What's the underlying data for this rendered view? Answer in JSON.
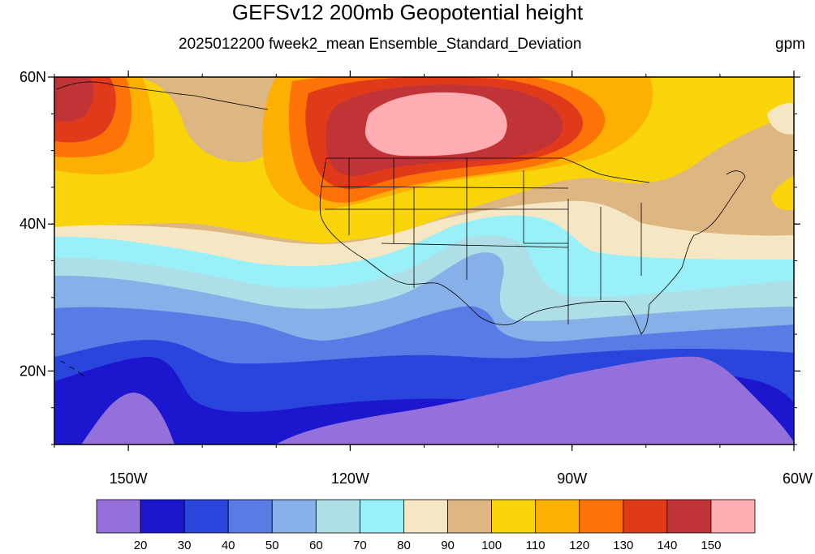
{
  "title": "GEFSv12 200mb Geopotential height",
  "subtitle": "2025012200 fweek2_mean Ensemble_Standard_Deviation",
  "units": "gpm",
  "map": {
    "lat_range": [
      10,
      60
    ],
    "lon_range": [
      -160,
      -60
    ],
    "lat_ticks": [
      {
        "value": 60,
        "label": "60N"
      },
      {
        "value": 40,
        "label": "40N"
      },
      {
        "value": 20,
        "label": "20N"
      }
    ],
    "lon_ticks": [
      {
        "value": -150,
        "label": "150W"
      },
      {
        "value": -120,
        "label": "120W"
      },
      {
        "value": -90,
        "label": "90W"
      },
      {
        "value": -60,
        "label": "60W"
      }
    ]
  },
  "colorbar": {
    "colors": [
      "#9370db",
      "#1c16cf",
      "#2a45dc",
      "#587be6",
      "#87b0e8",
      "#afdfe6",
      "#99f0f8",
      "#f5e6c4",
      "#ddb682",
      "#f9d40a",
      "#fdb003",
      "#fe7307",
      "#e03a1a",
      "#c03438",
      "#ffadb2"
    ],
    "labels": [
      "20",
      "30",
      "40",
      "50",
      "60",
      "70",
      "80",
      "90",
      "100",
      "110",
      "120",
      "130",
      "140",
      "150"
    ]
  }
}
